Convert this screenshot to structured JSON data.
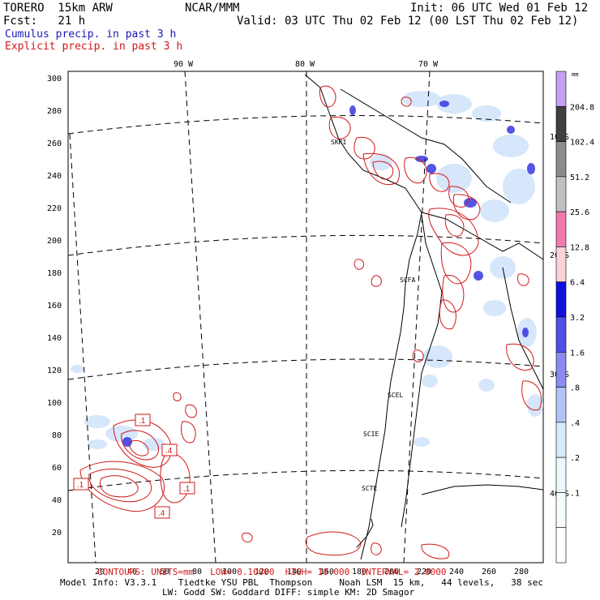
{
  "header": {
    "model": "TORERO  15km ARW",
    "org": "NCAR/MMM",
    "init": "Init: 06 UTC Wed 01 Feb 12",
    "fcst": "Fcst:   21 h",
    "valid": "Valid: 03 UTC Thu 02 Feb 12 (00 LST Thu 02 Feb 12)",
    "legend_cumulus": "Cumulus precip. in past 3 h",
    "legend_explicit": "Explicit precip. in past 3 h"
  },
  "map": {
    "lon_labels": [
      "90 W",
      "80 W",
      "70 W"
    ],
    "lat_labels": [
      "10 S",
      "20 S",
      "30 S",
      "40 S"
    ],
    "y_ticks": [
      "300",
      "280",
      "260",
      "240",
      "220",
      "200",
      "180",
      "160",
      "140",
      "120",
      "100",
      "80",
      "60",
      "40",
      "20"
    ],
    "x_ticks": [
      "20",
      "40",
      "60",
      "80",
      "100",
      "120",
      "140",
      "160",
      "180",
      "200",
      "220",
      "240",
      "260",
      "280"
    ],
    "station_labels": [
      "SKRI",
      "SCFA",
      "SCEL",
      "SCIE",
      "SCTE"
    ],
    "contour_box_labels": [
      ".1",
      ".4",
      ".4",
      ".1",
      ".1",
      ".4"
    ]
  },
  "colorbar": {
    "unit": "mm",
    "labels": [
      "204.8",
      "102.4",
      "51.2",
      "25.6",
      "12.8",
      "6.4",
      "3.2",
      "1.6",
      ".8",
      ".4",
      ".2",
      ".1"
    ],
    "colors": [
      "#c8a0f0",
      "#404040",
      "#8c8c8c",
      "#c0c0c0",
      "#f07ab0",
      "#fad2d8",
      "#1010e0",
      "#5050e8",
      "#8a8af0",
      "#b0c4f5",
      "#d8eafc",
      "#eaf8fc",
      "#f6fcfd",
      "#ffffff"
    ]
  },
  "footer": {
    "contours": "CONTOURS: UNITS=mm   LOW= 0.10000  HIGH= 10.000  INTERVAL= 2.0000",
    "model_info": "Model Info: V3.3.1    Tiedtke YSU PBL  Thompson     Noah LSM  15 km,   44 levels,   38 sec",
    "model_info2": "LW: Godd SW: Goddard DIFF: simple KM: 2D Smagor"
  }
}
